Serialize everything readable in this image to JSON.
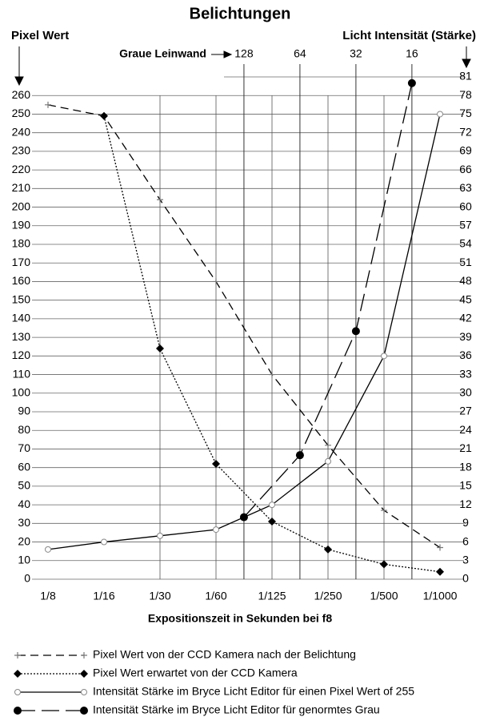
{
  "chart_data": {
    "type": "line",
    "title": "Belichtungen",
    "y_label": "Pixel Wert",
    "y2_label": "Licht Intensität (Stärke)",
    "x2_label": "Graue Leinwand",
    "x_label": "Expositionszeit in Sekunden bei f8",
    "categories": [
      "1/8",
      "1/16",
      "1/30",
      "1/60",
      "1/125",
      "1/250",
      "1/500",
      "1/1000"
    ],
    "ylim": [
      0,
      270
    ],
    "yticks": [
      0,
      10,
      20,
      30,
      40,
      50,
      60,
      70,
      80,
      90,
      100,
      110,
      120,
      130,
      140,
      150,
      160,
      170,
      180,
      190,
      200,
      210,
      220,
      230,
      240,
      250,
      260
    ],
    "y2lim": [
      0,
      81
    ],
    "y2ticks": [
      0,
      3,
      6,
      9,
      12,
      15,
      18,
      21,
      24,
      27,
      30,
      33,
      36,
      39,
      42,
      45,
      48,
      51,
      54,
      57,
      60,
      63,
      66,
      69,
      72,
      75,
      78,
      81
    ],
    "x2lim": [
      1448,
      11.3
    ],
    "x2_log": true,
    "x2ticks": [
      128,
      64,
      32,
      16
    ],
    "grid": true,
    "series": [
      {
        "name": "Pixel Wert von der CCD Kamera nach der Belichtung",
        "color": "#000000",
        "dash": "10 6",
        "marker": "plus",
        "values": [
          255,
          249,
          204,
          160,
          110,
          72,
          37,
          17
        ]
      },
      {
        "name": "Pixel Wert erwartet von der CCD Kamera",
        "color": "#000000",
        "dash": "2 2",
        "marker": "diamond",
        "values": [
          null,
          249,
          124,
          62,
          31,
          16,
          8,
          4
        ]
      },
      {
        "name": "Intensität Stärke im Bryce Licht Editor für einen Pixel Wert of 255",
        "color": "#000000",
        "dash": "none",
        "marker": "open-circle",
        "axis": "y2",
        "values": [
          4.8,
          6,
          7,
          8,
          12,
          19,
          36,
          75
        ]
      },
      {
        "name": "Intensität Stärke im Bryce Licht Editor für genormtes Grau",
        "color": "#000000",
        "dash": "22 8",
        "marker": "filled-circle",
        "axis": "y2",
        "x_axis": "x2",
        "x": [
          128,
          64,
          32,
          16
        ],
        "values": [
          10,
          20,
          40,
          80
        ]
      }
    ]
  }
}
